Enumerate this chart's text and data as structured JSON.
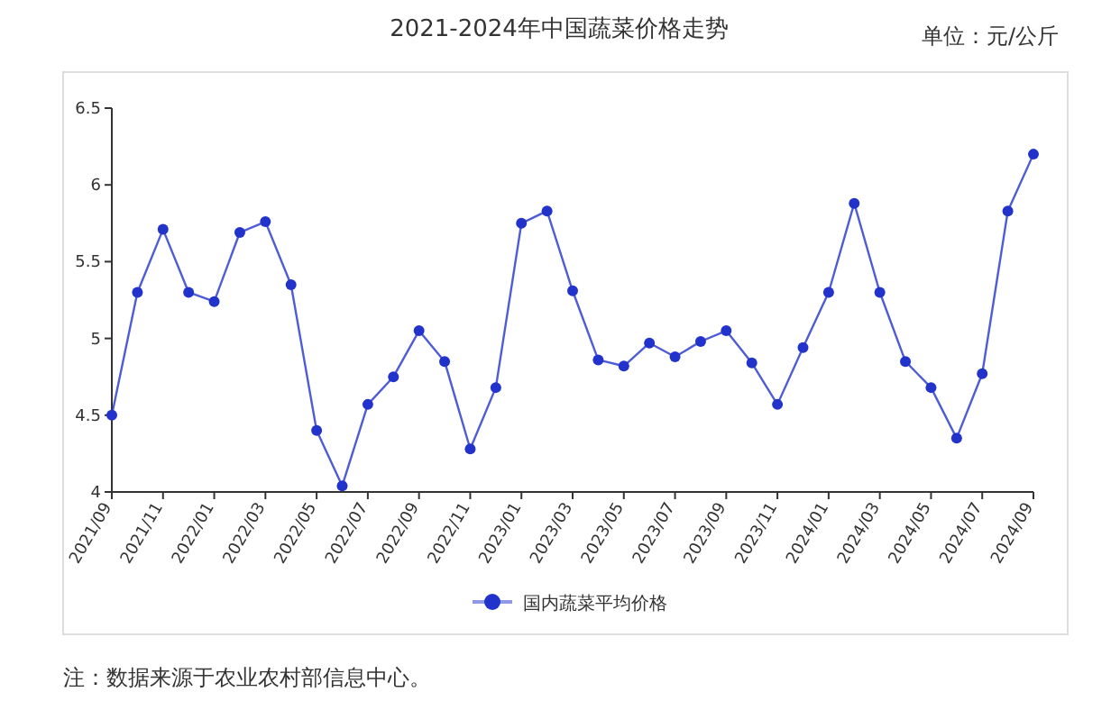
{
  "chart_data": {
    "type": "line",
    "title": "2021-2024年中国蔬菜价格走势",
    "categories": [
      "2021/09",
      null,
      "2021/11",
      null,
      "2022/01",
      null,
      "2022/03",
      null,
      "2022/05",
      null,
      "2022/07",
      null,
      "2022/09",
      null,
      "2022/11",
      null,
      "2023/01",
      null,
      "2023/03",
      null,
      "2023/05",
      null,
      "2023/07",
      null,
      "2023/09",
      null,
      "2023/11",
      null,
      "2024/01",
      null,
      "2024/03",
      null,
      "2024/05",
      null,
      "2024/07",
      null,
      "2024/09"
    ],
    "series": [
      {
        "name": "国内蔬菜平均价格",
        "color": "#2233cc",
        "values": [
          4.5,
          5.3,
          5.71,
          5.3,
          5.24,
          5.69,
          5.76,
          5.35,
          4.4,
          4.04,
          4.57,
          4.75,
          5.05,
          4.85,
          4.28,
          4.68,
          5.75,
          5.83,
          5.31,
          4.86,
          4.82,
          4.97,
          4.88,
          4.98,
          5.05,
          4.84,
          4.57,
          4.94,
          5.3,
          5.88,
          5.3,
          4.85,
          4.68,
          4.35,
          4.77,
          5.83,
          6.2
        ]
      }
    ],
    "ylim": [
      4,
      6.5
    ],
    "yticks": [
      4,
      4.5,
      5,
      5.5,
      6,
      6.5
    ],
    "grid": false,
    "legend": "bottom",
    "marker": "circle",
    "line_style": "solid",
    "annotations": [
      "单位：元/公斤",
      "注：数据来源于农业农村部信息中心。"
    ]
  }
}
